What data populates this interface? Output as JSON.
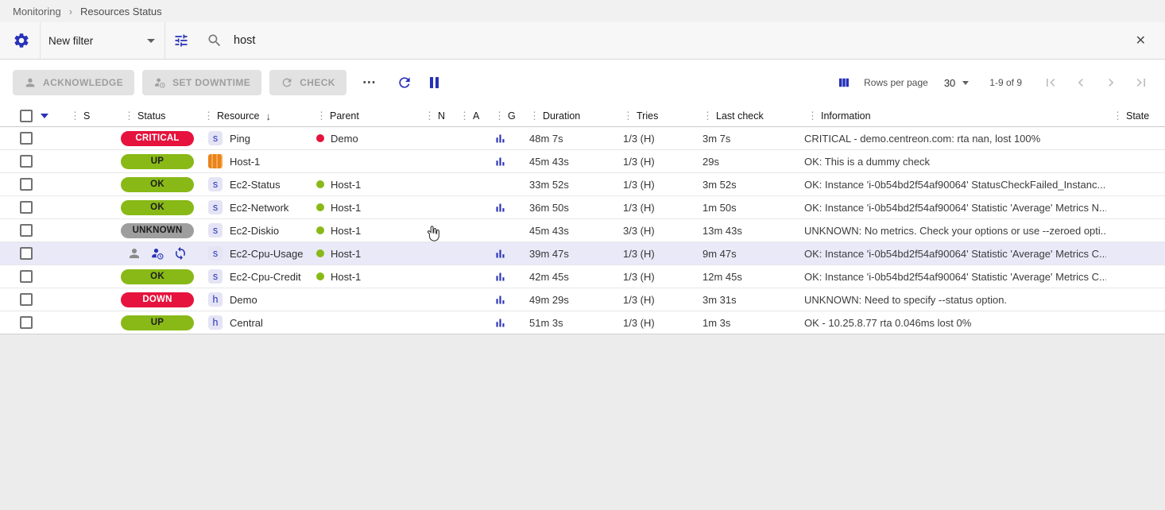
{
  "colors": {
    "primary": "#2731b8",
    "critical": "#e5133d",
    "ok": "#88b917",
    "unknown": "#9e9e9e",
    "highlight_row": "#e9e9f8"
  },
  "glyphs": {
    "handle": "⋮",
    "sort_desc": "↓",
    "breadcrumb_separator": "›",
    "clear": "✕",
    "more": "⋯"
  },
  "breadcrumb": {
    "items": [
      "Monitoring",
      "Resources Status"
    ]
  },
  "filters": {
    "filter_name": "New filter",
    "search_value": "host"
  },
  "actions": {
    "acknowledge": "ACKNOWLEDGE",
    "set_downtime": "SET DOWNTIME",
    "check": "CHECK"
  },
  "pagination": {
    "rows_per_page_label": "Rows per page",
    "rows_per_page": "30",
    "range": "1-9 of 9"
  },
  "table": {
    "type_letters": {
      "s": "s",
      "h": "h"
    },
    "headers": {
      "s": "S",
      "status": "Status",
      "resource": "Resource",
      "parent": "Parent",
      "n": "N",
      "a": "A",
      "g": "G",
      "duration": "Duration",
      "tries": "Tries",
      "last_check": "Last check",
      "information": "Information",
      "state": "State"
    },
    "rows": [
      {
        "status": {
          "kind": "badge",
          "label": "CRITICAL",
          "color": "critical"
        },
        "type": "s",
        "resource": "Ping",
        "parent": {
          "label": "Demo",
          "color": "critical"
        },
        "graph": true,
        "duration": "48m 7s",
        "tries": "1/3 (H)",
        "last_check": "3m 7s",
        "information": "CRITICAL - demo.centreon.com: rta nan, lost 100%",
        "highlighted": false
      },
      {
        "status": {
          "kind": "badge",
          "label": "UP",
          "color": "ok"
        },
        "type": "host",
        "resource": "Host-1",
        "parent": null,
        "graph": true,
        "duration": "45m 43s",
        "tries": "1/3 (H)",
        "last_check": "29s",
        "information": "OK: This is a dummy check",
        "highlighted": false
      },
      {
        "status": {
          "kind": "badge",
          "label": "OK",
          "color": "ok"
        },
        "type": "s",
        "resource": "Ec2-Status",
        "parent": {
          "label": "Host-1",
          "color": "ok"
        },
        "graph": false,
        "duration": "33m 52s",
        "tries": "1/3 (H)",
        "last_check": "3m 52s",
        "information": "OK: Instance 'i-0b54bd2f54af90064' StatusCheckFailed_Instanc...",
        "highlighted": false
      },
      {
        "status": {
          "kind": "badge",
          "label": "OK",
          "color": "ok"
        },
        "type": "s",
        "resource": "Ec2-Network",
        "parent": {
          "label": "Host-1",
          "color": "ok"
        },
        "graph": true,
        "duration": "36m 50s",
        "tries": "1/3 (H)",
        "last_check": "1m 50s",
        "information": "OK: Instance 'i-0b54bd2f54af90064' Statistic 'Average' Metrics N...",
        "highlighted": false
      },
      {
        "status": {
          "kind": "badge",
          "label": "UNKNOWN",
          "color": "unknown"
        },
        "type": "s",
        "resource": "Ec2-Diskio",
        "parent": {
          "label": "Host-1",
          "color": "ok"
        },
        "graph": false,
        "duration": "45m 43s",
        "tries": "3/3 (H)",
        "last_check": "13m 43s",
        "information": "UNKNOWN: No metrics. Check your options or use --zeroed opti...",
        "highlighted": false
      },
      {
        "status": {
          "kind": "icons",
          "icons": [
            "acknowledged",
            "downtime",
            "sync"
          ]
        },
        "type": "s",
        "resource": "Ec2-Cpu-Usage",
        "parent": {
          "label": "Host-1",
          "color": "ok"
        },
        "graph": true,
        "duration": "39m 47s",
        "tries": "1/3 (H)",
        "last_check": "9m 47s",
        "information": "OK: Instance 'i-0b54bd2f54af90064' Statistic 'Average' Metrics C...",
        "highlighted": true
      },
      {
        "status": {
          "kind": "badge",
          "label": "OK",
          "color": "ok"
        },
        "type": "s",
        "resource": "Ec2-Cpu-Credit",
        "parent": {
          "label": "Host-1",
          "color": "ok"
        },
        "graph": true,
        "duration": "42m 45s",
        "tries": "1/3 (H)",
        "last_check": "12m 45s",
        "information": "OK: Instance 'i-0b54bd2f54af90064' Statistic 'Average' Metrics C...",
        "highlighted": false
      },
      {
        "status": {
          "kind": "badge",
          "label": "DOWN",
          "color": "critical"
        },
        "type": "h",
        "resource": "Demo",
        "parent": null,
        "graph": true,
        "duration": "49m 29s",
        "tries": "1/3 (H)",
        "last_check": "3m 31s",
        "information": "UNKNOWN: Need to specify --status option.",
        "highlighted": false
      },
      {
        "status": {
          "kind": "badge",
          "label": "UP",
          "color": "ok"
        },
        "type": "h",
        "resource": "Central",
        "parent": null,
        "graph": true,
        "duration": "51m 3s",
        "tries": "1/3 (H)",
        "last_check": "1m 3s",
        "information": "OK - 10.25.8.77 rta 0.046ms lost 0%",
        "highlighted": false
      }
    ]
  }
}
